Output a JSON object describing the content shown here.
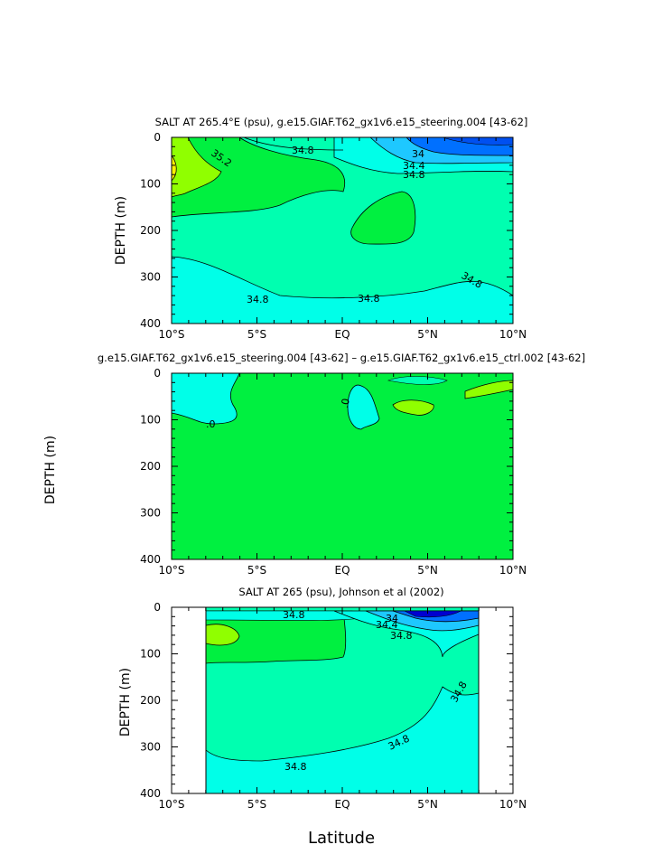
{
  "page": {
    "xlabel": "Latitude",
    "x_ticks": [
      "10°S",
      "5°S",
      "EQ",
      "5°N",
      "10°N"
    ],
    "y_ticks": [
      "0",
      "100",
      "200",
      "300",
      "400"
    ]
  },
  "chart_data": [
    {
      "type": "heatmap",
      "title": "SALT AT 265.4°E (psu), g.e15.GIAF.T62_gx1v6.e15_steering.004 [43-62]",
      "xlabel": "",
      "ylabel": "DEPTH (m)",
      "xlim": [
        -10,
        10
      ],
      "ylim": [
        400,
        0
      ],
      "contour_labels": [
        "35.2",
        "34.8",
        "34",
        "34.4",
        "34.8",
        "34.8",
        "34.8",
        "34.8"
      ]
    },
    {
      "type": "heatmap",
      "title": "g.e15.GIAF.T62_gx1v6.e15_steering.004 [43-62] – g.e15.GIAF.T62_gx1v6.e15_ctrl.002 [43-62]",
      "xlabel": "",
      "ylabel": "DEPTH (m)",
      "xlim": [
        -10,
        10
      ],
      "ylim": [
        400,
        0
      ],
      "contour_labels": [
        ".0",
        ".0"
      ]
    },
    {
      "type": "heatmap",
      "title": "SALT AT 265 (psu), Johnson et al (2002)",
      "xlabel": "Latitude",
      "ylabel": "DEPTH (m)",
      "xlim": [
        -10,
        10
      ],
      "ylim": [
        400,
        0
      ],
      "data_xlim": [
        -8,
        8
      ],
      "contour_labels": [
        "34.8",
        "34",
        "34.4",
        "34.8",
        "34.8",
        "34.8",
        "34.8"
      ]
    }
  ],
  "colors": {
    "deep_blue": "#0000d0",
    "blue": "#0070ff",
    "light_blue": "#1ec8ff",
    "cyan": "#00ffe8",
    "aqua_green": "#00ffb0",
    "green": "#00f040",
    "yellow_green": "#90ff00",
    "yellow": "#f8f000"
  }
}
